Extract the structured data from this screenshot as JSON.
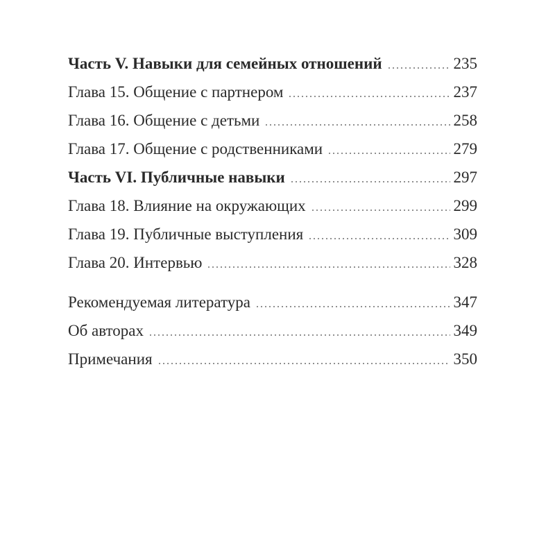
{
  "page": {
    "kind": "book-table-of-contents",
    "language": "ru",
    "text_color": "#2a2a2a",
    "leader_dot_color": "#8f8f8f",
    "background_color": "#ffffff"
  },
  "toc": {
    "sections": [
      {
        "gap_before": "none",
        "entries": [
          {
            "title": "Часть V. Навыки для семейных отношений",
            "page": "235",
            "bold": true
          },
          {
            "title": "Глава 15. Общение с партнером",
            "page": "237",
            "bold": false
          },
          {
            "title": "Глава 16. Общение с детьми",
            "page": "258",
            "bold": false
          },
          {
            "title": "Глава 17. Общение с родственниками",
            "page": "279",
            "bold": false
          }
        ]
      },
      {
        "gap_before": "small",
        "entries": [
          {
            "title": "Часть VI. Публичные навыки",
            "page": "297",
            "bold": true
          },
          {
            "title": "Глава 18. Влияние на окружающих",
            "page": "299",
            "bold": false
          },
          {
            "title": "Глава 19. Публичные выступления",
            "page": "309",
            "bold": false
          },
          {
            "title": "Глава 20. Интервью",
            "page": "328",
            "bold": false
          }
        ]
      },
      {
        "gap_before": "large",
        "entries": [
          {
            "title": "Рекомендуемая литература",
            "page": "347",
            "bold": false
          },
          {
            "title": "Об авторах",
            "page": "349",
            "bold": false
          },
          {
            "title": "Примечания",
            "page": "350",
            "bold": false
          }
        ]
      }
    ]
  }
}
